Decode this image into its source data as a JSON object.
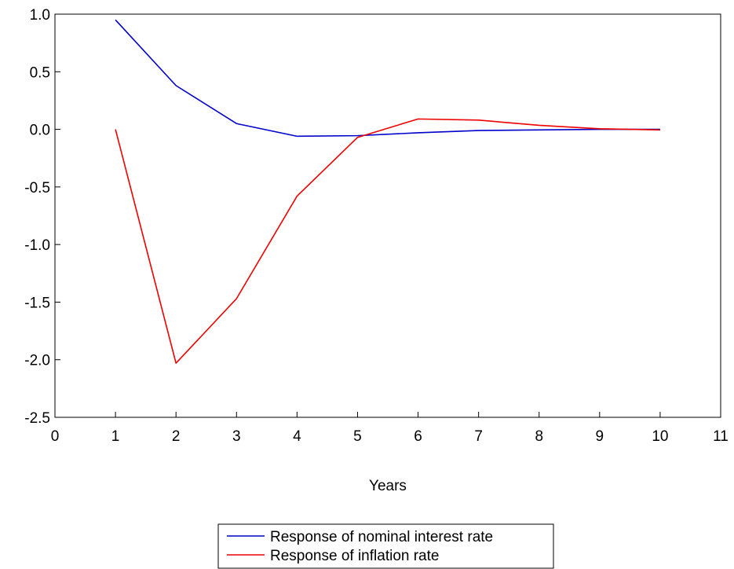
{
  "chart_data": {
    "type": "line",
    "title": "",
    "xlabel": "Years",
    "ylabel": "",
    "xlim": [
      0,
      11
    ],
    "ylim": [
      -2.5,
      1.0
    ],
    "x_ticks": [
      0,
      1,
      2,
      3,
      4,
      5,
      6,
      7,
      8,
      9,
      10,
      11
    ],
    "y_ticks": [
      1.0,
      0.5,
      0.0,
      -0.5,
      -1.0,
      -1.5,
      -2.0,
      -2.5
    ],
    "y_tick_labels": [
      "1.0",
      "0.5",
      "0.0",
      "-0.5",
      "-1.0",
      "-1.5",
      "-2.0",
      "-2.5"
    ],
    "grid": false,
    "legend_position": "bottom-center",
    "series": [
      {
        "name": "Response of nominal interest rate",
        "color": "#0000cc",
        "x": [
          1,
          2,
          3,
          4,
          5,
          6,
          7,
          8,
          9,
          10
        ],
        "values": [
          0.95,
          0.38,
          0.05,
          -0.06,
          -0.055,
          -0.03,
          -0.01,
          -0.005,
          0.0,
          0.0
        ]
      },
      {
        "name": "Response of inflation rate",
        "color": "#ee0000",
        "x": [
          1,
          2,
          3,
          4,
          5,
          6,
          7,
          8,
          9,
          10
        ],
        "values": [
          0.0,
          -2.03,
          -1.47,
          -0.58,
          -0.07,
          0.09,
          0.08,
          0.035,
          0.005,
          -0.005
        ]
      }
    ]
  }
}
